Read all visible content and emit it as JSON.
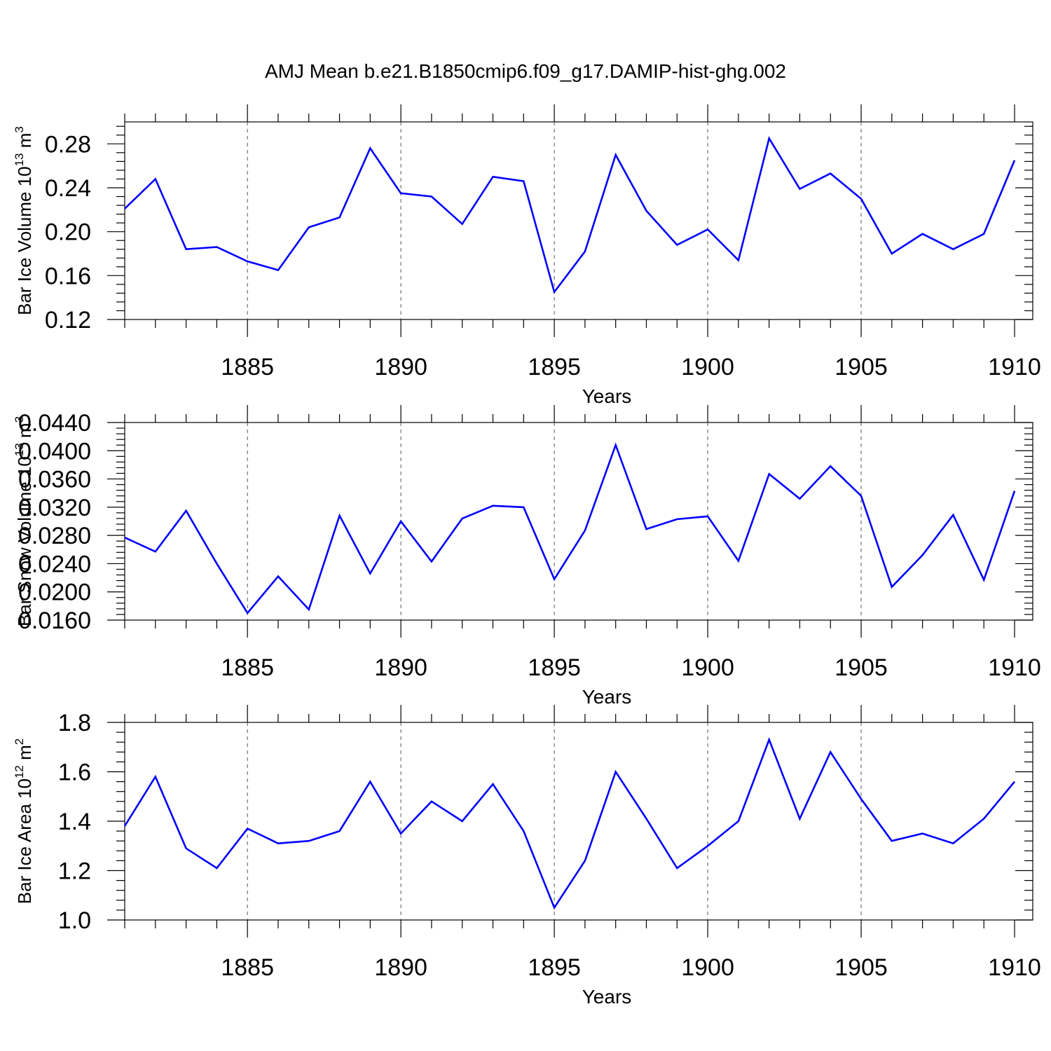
{
  "title": "AMJ Mean b.e21.B1850cmip6.f09_g17.DAMIP-hist-ghg.002",
  "chart_data": [
    {
      "type": "line",
      "xlabel": "Years",
      "ylabel_main": "Bar Ice Volume 10",
      "ylabel_exp": "13",
      "ylabel_unit": " m",
      "ylabel_unit_exp": "3",
      "xlim": [
        1881,
        1910
      ],
      "ylim": [
        0.12,
        0.3
      ],
      "yticks": [
        "0.12",
        "0.16",
        "0.20",
        "0.24",
        "0.28"
      ],
      "xticks": [
        "1885",
        "1890",
        "1895",
        "1900",
        "1905",
        "1910"
      ],
      "color": "#0000ff",
      "x": [
        1881,
        1882,
        1883,
        1884,
        1885,
        1886,
        1887,
        1888,
        1889,
        1890,
        1891,
        1892,
        1893,
        1894,
        1895,
        1896,
        1897,
        1898,
        1899,
        1900,
        1901,
        1902,
        1903,
        1904,
        1905,
        1906,
        1907,
        1908,
        1909,
        1910
      ],
      "values": [
        0.221,
        0.248,
        0.184,
        0.186,
        0.173,
        0.165,
        0.204,
        0.213,
        0.276,
        0.235,
        0.232,
        0.207,
        0.25,
        0.246,
        0.145,
        0.182,
        0.27,
        0.219,
        0.188,
        0.202,
        0.174,
        0.285,
        0.239,
        0.253,
        0.23,
        0.18,
        0.198,
        0.184,
        0.198,
        0.265
      ]
    },
    {
      "type": "line",
      "xlabel": "Years",
      "ylabel_main": "Bar Snow Volume 10",
      "ylabel_exp": "13",
      "ylabel_unit": " m",
      "ylabel_unit_exp": "3",
      "xlim": [
        1881,
        1910
      ],
      "ylim": [
        0.016,
        0.044
      ],
      "yticks": [
        "0.0160",
        "0.0200",
        "0.0240",
        "0.0280",
        "0.0320",
        "0.0360",
        "0.0400",
        "0.0440"
      ],
      "xticks": [
        "1885",
        "1890",
        "1895",
        "1900",
        "1905",
        "1910"
      ],
      "color": "#0000ff",
      "x": [
        1881,
        1882,
        1883,
        1884,
        1885,
        1886,
        1887,
        1888,
        1889,
        1890,
        1891,
        1892,
        1893,
        1894,
        1895,
        1896,
        1897,
        1898,
        1899,
        1900,
        1901,
        1902,
        1903,
        1904,
        1905,
        1906,
        1907,
        1908,
        1909,
        1910
      ],
      "values": [
        0.0277,
        0.0257,
        0.0315,
        0.024,
        0.017,
        0.0222,
        0.0175,
        0.0308,
        0.0226,
        0.03,
        0.0243,
        0.0304,
        0.0322,
        0.032,
        0.0218,
        0.0287,
        0.0408,
        0.0289,
        0.0303,
        0.0307,
        0.0244,
        0.0367,
        0.0332,
        0.0378,
        0.0336,
        0.0207,
        0.0252,
        0.0309,
        0.0217,
        0.0343
      ]
    },
    {
      "type": "line",
      "xlabel": "Years",
      "ylabel_main": "Bar Ice Area 10",
      "ylabel_exp": "12",
      "ylabel_unit": " m",
      "ylabel_unit_exp": "2",
      "xlim": [
        1881,
        1910
      ],
      "ylim": [
        1.0,
        1.8
      ],
      "yticks": [
        "1.0",
        "1.2",
        "1.4",
        "1.6",
        "1.8"
      ],
      "xticks": [
        "1885",
        "1890",
        "1895",
        "1900",
        "1905",
        "1910"
      ],
      "color": "#0000ff",
      "x": [
        1881,
        1882,
        1883,
        1884,
        1885,
        1886,
        1887,
        1888,
        1889,
        1890,
        1891,
        1892,
        1893,
        1894,
        1895,
        1896,
        1897,
        1898,
        1899,
        1900,
        1901,
        1902,
        1903,
        1904,
        1905,
        1906,
        1907,
        1908,
        1909,
        1910
      ],
      "values": [
        1.38,
        1.58,
        1.29,
        1.21,
        1.37,
        1.31,
        1.32,
        1.36,
        1.56,
        1.35,
        1.48,
        1.4,
        1.55,
        1.36,
        1.05,
        1.24,
        1.6,
        1.41,
        1.21,
        1.3,
        1.4,
        1.73,
        1.41,
        1.68,
        1.49,
        1.32,
        1.35,
        1.31,
        1.41,
        1.56
      ]
    }
  ]
}
